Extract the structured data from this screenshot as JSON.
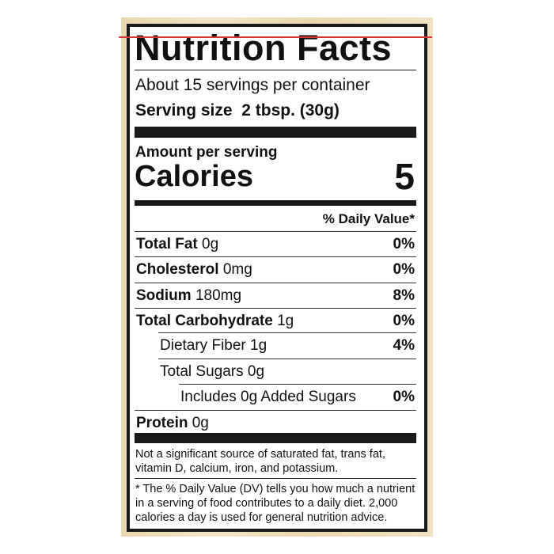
{
  "label": {
    "title": "Nutrition Facts",
    "servings_per_container": "About 15 servings per container",
    "serving_size_label": "Serving size",
    "serving_size_value": "2 tbsp. (30g)",
    "amount_per_serving": "Amount per serving",
    "calories_label": "Calories",
    "calories_value": "5",
    "daily_value_header": "% Daily Value*",
    "rows": [
      {
        "name": "Total Fat",
        "amount": "0g",
        "dv": "0%"
      },
      {
        "name": "Cholesterol",
        "amount": "0mg",
        "dv": "0%"
      },
      {
        "name": "Sodium",
        "amount": "180mg",
        "dv": "8%"
      },
      {
        "name": "Total Carbohydrate",
        "amount": "1g",
        "dv": "0%"
      },
      {
        "name": "Dietary Fiber",
        "amount": "1g",
        "dv": "4%"
      },
      {
        "name": "Total Sugars",
        "amount": "0g",
        "dv": ""
      },
      {
        "name": "Includes 0g Added Sugars",
        "amount": "",
        "dv": "0%"
      },
      {
        "name": "Protein",
        "amount": "0g",
        "dv": ""
      }
    ],
    "footnote_1": [
      "Not a significant source of saturated fat, trans fat,",
      "vitamin D, calcium, iron, and potassium."
    ],
    "footnote_2": [
      "* The % Daily Value (DV) tells you how much a nutrient",
      "in a serving of food contributes to a daily diet. 2,000",
      "calories a day is used for general nutrition advice."
    ]
  },
  "colors": {
    "background": "#ecdcb4",
    "border": "#1a1a1a",
    "red_line": "#d9343a"
  }
}
